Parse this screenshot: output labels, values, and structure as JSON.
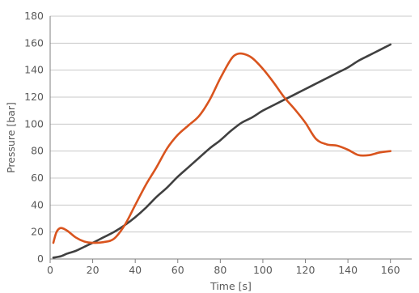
{
  "chart_data": {
    "type": "line",
    "title": "",
    "xlabel": "Time [s]",
    "ylabel": "Pressure [bar]",
    "xlim": [
      0,
      170
    ],
    "ylim": [
      0,
      180
    ],
    "x_ticks": [
      0,
      20,
      40,
      60,
      80,
      100,
      120,
      140,
      160
    ],
    "y_ticks": [
      0,
      20,
      40,
      60,
      80,
      100,
      120,
      140,
      160,
      180
    ],
    "grid": "horizontal",
    "legend": "none",
    "series": [
      {
        "color": "#d9541e",
        "x": [
          1.5,
          3,
          5,
          8,
          12,
          16,
          20,
          25,
          30,
          35,
          40,
          45,
          50,
          55,
          60,
          65,
          70,
          75,
          80,
          85,
          88,
          91,
          95,
          100,
          105,
          110,
          115,
          120,
          125,
          130,
          135,
          140,
          145,
          150,
          155,
          160
        ],
        "y": [
          12,
          20,
          23,
          21,
          16,
          13,
          12,
          12.5,
          15,
          25,
          40,
          55,
          68,
          82,
          92,
          99,
          106,
          118,
          134,
          148,
          152,
          152,
          149,
          141,
          131,
          120,
          111,
          101,
          89,
          85,
          84,
          81,
          77,
          77,
          79,
          80
        ]
      },
      {
        "color": "#404040",
        "x": [
          1.5,
          5,
          8,
          12,
          16,
          20,
          25,
          30,
          35,
          40,
          45,
          50,
          55,
          60,
          65,
          70,
          75,
          80,
          85,
          90,
          95,
          100,
          105,
          110,
          115,
          120,
          125,
          130,
          135,
          140,
          145,
          150,
          155,
          160
        ],
        "y": [
          1,
          2,
          4,
          6,
          9,
          12,
          16,
          20,
          25,
          31,
          38,
          46,
          53,
          61,
          68,
          75,
          82,
          88,
          95,
          101,
          105,
          110,
          114,
          118,
          122,
          126,
          130,
          134,
          138,
          142,
          147,
          151,
          155,
          159
        ]
      }
    ]
  }
}
